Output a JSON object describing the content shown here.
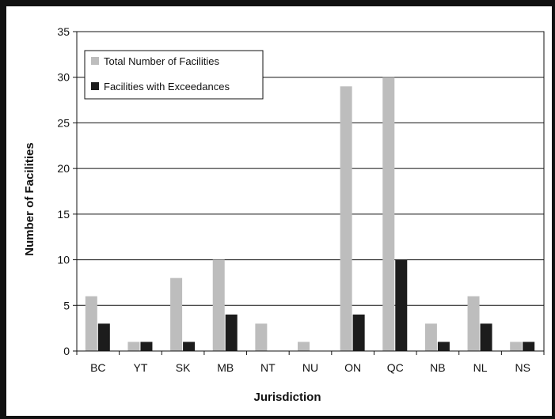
{
  "colors": {
    "total": "#bdbdbd",
    "exceed": "#1c1c1c",
    "frame": "#111111",
    "grid": "#111111"
  },
  "chart_data": {
    "type": "bar",
    "title": "",
    "xlabel": "Jurisdiction",
    "ylabel": "Number of Facilities",
    "ylim": [
      0,
      35
    ],
    "yticks": [
      0,
      5,
      10,
      15,
      20,
      25,
      30,
      35
    ],
    "grid": true,
    "legend_position": "top-left",
    "categories": [
      "BC",
      "YT",
      "SK",
      "MB",
      "NT",
      "NU",
      "ON",
      "QC",
      "NB",
      "NL",
      "NS"
    ],
    "series": [
      {
        "name": "Total Number of Facilities",
        "values": [
          6,
          1,
          8,
          10,
          3,
          1,
          29,
          30,
          3,
          6,
          1
        ]
      },
      {
        "name": "Facilities with Exceedances",
        "values": [
          3,
          1,
          1,
          4,
          0,
          0,
          4,
          10,
          1,
          3,
          1
        ]
      }
    ]
  }
}
